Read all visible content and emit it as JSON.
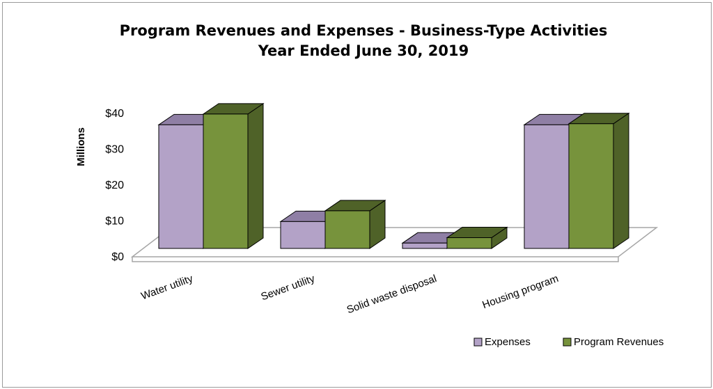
{
  "chart_data": {
    "type": "bar",
    "title": "Program Revenues and Expenses - Business-Type Activities",
    "subtitle": "Year Ended June 30, 2019",
    "ylabel": "Millions",
    "xlabel": "",
    "ylim": [
      0,
      40
    ],
    "yticks": [
      "$0",
      "$10",
      "$20",
      "$30",
      "$40"
    ],
    "categories": [
      "Water utility",
      "Sewer utility",
      "Solid waste disposal",
      "Housing program"
    ],
    "series": [
      {
        "name": "Expenses",
        "values": [
          34.5,
          7.5,
          1.5,
          34.5
        ],
        "color": "#b3a2c7"
      },
      {
        "name": "Program Revenues",
        "values": [
          37.5,
          10.5,
          3.0,
          34.8
        ],
        "color": "#77933c"
      }
    ],
    "legend_position": "bottom-right",
    "grid": false,
    "style": "3d-clustered-column"
  }
}
